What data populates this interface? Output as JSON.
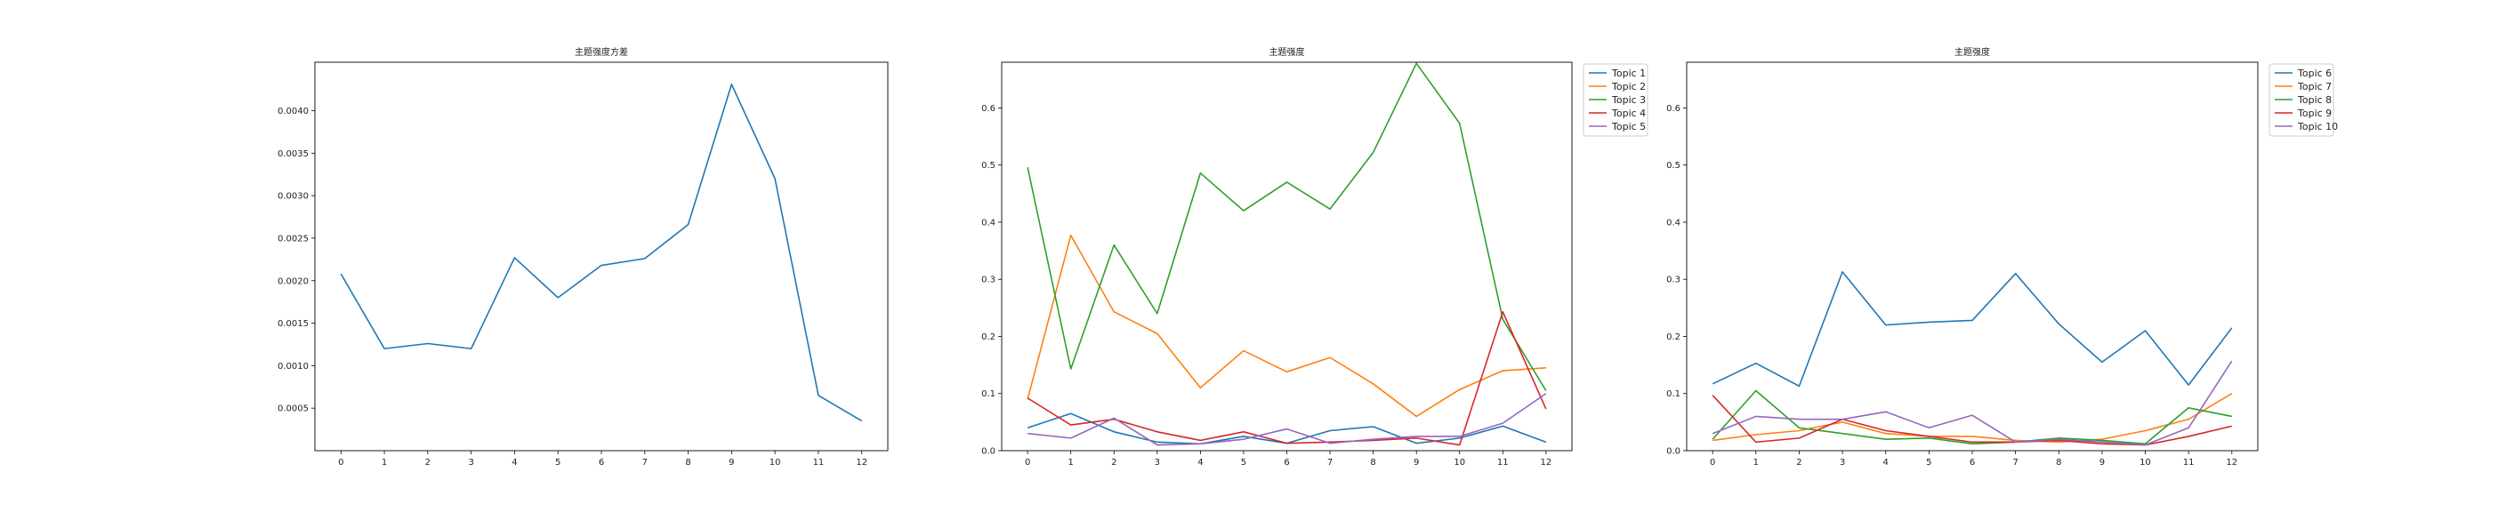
{
  "chart_data": [
    {
      "type": "line",
      "title": "主题强度方差",
      "xlabel": "",
      "ylabel": "",
      "x": [
        0,
        1,
        2,
        3,
        4,
        5,
        6,
        7,
        8,
        9,
        10,
        11,
        12
      ],
      "xlim": [
        -0.6,
        12.6
      ],
      "ylim": [
        0.0,
        0.00457
      ],
      "yticks": [
        "0.0005",
        "0.0010",
        "0.0015",
        "0.0020",
        "0.0025",
        "0.0030",
        "0.0035",
        "0.0040"
      ],
      "ytick_values": [
        0.0005,
        0.001,
        0.0015,
        0.002,
        0.0025,
        0.003,
        0.0035,
        0.004
      ],
      "grid": false,
      "legend": "none",
      "series": [
        {
          "color": "#1f77b4",
          "values": [
            0.00208,
            0.0012,
            0.00126,
            0.0012,
            0.00227,
            0.0018,
            0.00218,
            0.00226,
            0.00266,
            0.00431,
            0.0032,
            0.00065,
            0.00035
          ]
        }
      ]
    },
    {
      "type": "line",
      "title": "主题强度",
      "xlabel": "",
      "ylabel": "",
      "x": [
        0,
        1,
        2,
        3,
        4,
        5,
        6,
        7,
        8,
        9,
        10,
        11,
        12
      ],
      "xlim": [
        -0.6,
        12.6
      ],
      "ylim": [
        0.0,
        0.68
      ],
      "yticks": [
        "0.0",
        "0.1",
        "0.2",
        "0.3",
        "0.4",
        "0.5",
        "0.6"
      ],
      "ytick_values": [
        0.0,
        0.1,
        0.2,
        0.3,
        0.4,
        0.5,
        0.6
      ],
      "grid": false,
      "legend": "outside-top-right",
      "series": [
        {
          "name": "Topic 1",
          "color": "#1f77b4",
          "values": [
            0.04,
            0.065,
            0.033,
            0.015,
            0.012,
            0.025,
            0.013,
            0.035,
            0.042,
            0.013,
            0.022,
            0.043,
            0.015
          ]
        },
        {
          "name": "Topic 2",
          "color": "#ff7f0e",
          "values": [
            0.09,
            0.377,
            0.243,
            0.205,
            0.11,
            0.175,
            0.138,
            0.163,
            0.117,
            0.06,
            0.107,
            0.14,
            0.145
          ]
        },
        {
          "name": "Topic 3",
          "color": "#2ca02c",
          "values": [
            0.496,
            0.143,
            0.36,
            0.24,
            0.486,
            0.42,
            0.47,
            0.423,
            0.522,
            0.678,
            0.573,
            0.23,
            0.105
          ]
        },
        {
          "name": "Topic 4",
          "color": "#d62728",
          "values": [
            0.092,
            0.045,
            0.055,
            0.033,
            0.018,
            0.033,
            0.013,
            0.015,
            0.018,
            0.022,
            0.01,
            0.243,
            0.073
          ]
        },
        {
          "name": "Topic 5",
          "color": "#9467bd",
          "values": [
            0.03,
            0.022,
            0.057,
            0.01,
            0.012,
            0.02,
            0.038,
            0.013,
            0.02,
            0.025,
            0.025,
            0.048,
            0.1
          ]
        }
      ]
    },
    {
      "type": "line",
      "title": "主题强度",
      "xlabel": "",
      "ylabel": "",
      "x": [
        0,
        1,
        2,
        3,
        4,
        5,
        6,
        7,
        8,
        9,
        10,
        11,
        12
      ],
      "xlim": [
        -0.6,
        12.6
      ],
      "ylim": [
        0.0,
        0.68
      ],
      "yticks": [
        "0.0",
        "0.1",
        "0.2",
        "0.3",
        "0.4",
        "0.5",
        "0.6"
      ],
      "ytick_values": [
        0.0,
        0.1,
        0.2,
        0.3,
        0.4,
        0.5,
        0.6
      ],
      "grid": false,
      "legend": "outside-top-right",
      "series": [
        {
          "name": "Topic 6",
          "color": "#1f77b4",
          "values": [
            0.117,
            0.153,
            0.113,
            0.313,
            0.22,
            0.225,
            0.228,
            0.31,
            0.222,
            0.155,
            0.21,
            0.115,
            0.215
          ]
        },
        {
          "name": "Topic 7",
          "color": "#ff7f0e",
          "values": [
            0.018,
            0.028,
            0.035,
            0.05,
            0.03,
            0.025,
            0.025,
            0.018,
            0.015,
            0.02,
            0.035,
            0.055,
            0.1
          ]
        },
        {
          "name": "Topic 8",
          "color": "#2ca02c",
          "values": [
            0.02,
            0.105,
            0.04,
            0.03,
            0.02,
            0.022,
            0.012,
            0.015,
            0.022,
            0.018,
            0.012,
            0.075,
            0.06
          ]
        },
        {
          "name": "Topic 9",
          "color": "#d62728",
          "values": [
            0.097,
            0.015,
            0.022,
            0.055,
            0.035,
            0.025,
            0.015,
            0.015,
            0.018,
            0.012,
            0.01,
            0.025,
            0.043
          ]
        },
        {
          "name": "Topic 10",
          "color": "#9467bd",
          "values": [
            0.03,
            0.06,
            0.055,
            0.055,
            0.068,
            0.04,
            0.062,
            0.015,
            0.02,
            0.015,
            0.01,
            0.04,
            0.157
          ]
        }
      ]
    }
  ]
}
